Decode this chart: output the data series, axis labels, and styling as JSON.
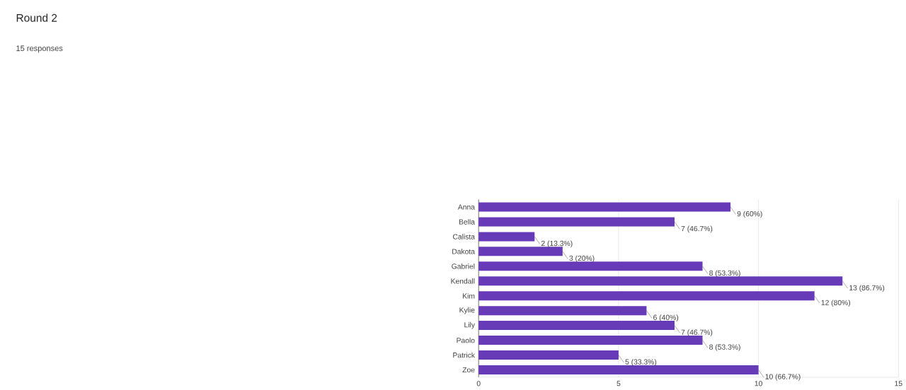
{
  "chart_data": {
    "type": "bar",
    "orientation": "horizontal",
    "title": "Round 2",
    "subtitle": "15 responses",
    "categories": [
      "Anna",
      "Bella",
      "Calista",
      "Dakota",
      "Gabriel",
      "Kendall",
      "Kim",
      "Kylie",
      "Lily",
      "Paolo",
      "Patrick",
      "Zoe"
    ],
    "values": [
      9,
      7,
      2,
      3,
      8,
      13,
      12,
      6,
      7,
      8,
      5,
      10
    ],
    "value_labels": [
      "9 (60%)",
      "7 (46.7%)",
      "2 (13.3%)",
      "3 (20%)",
      "8 (53.3%)",
      "13 (86.7%)",
      "12 (80%)",
      "6 (40%)",
      "7 (46.7%)",
      "8 (53.3%)",
      "5 (33.3%)",
      "10 (66.7%)"
    ],
    "color": "#673ab7",
    "xlim": [
      0,
      15
    ],
    "xticks": [
      0,
      5,
      10,
      15
    ],
    "grid": "x"
  }
}
